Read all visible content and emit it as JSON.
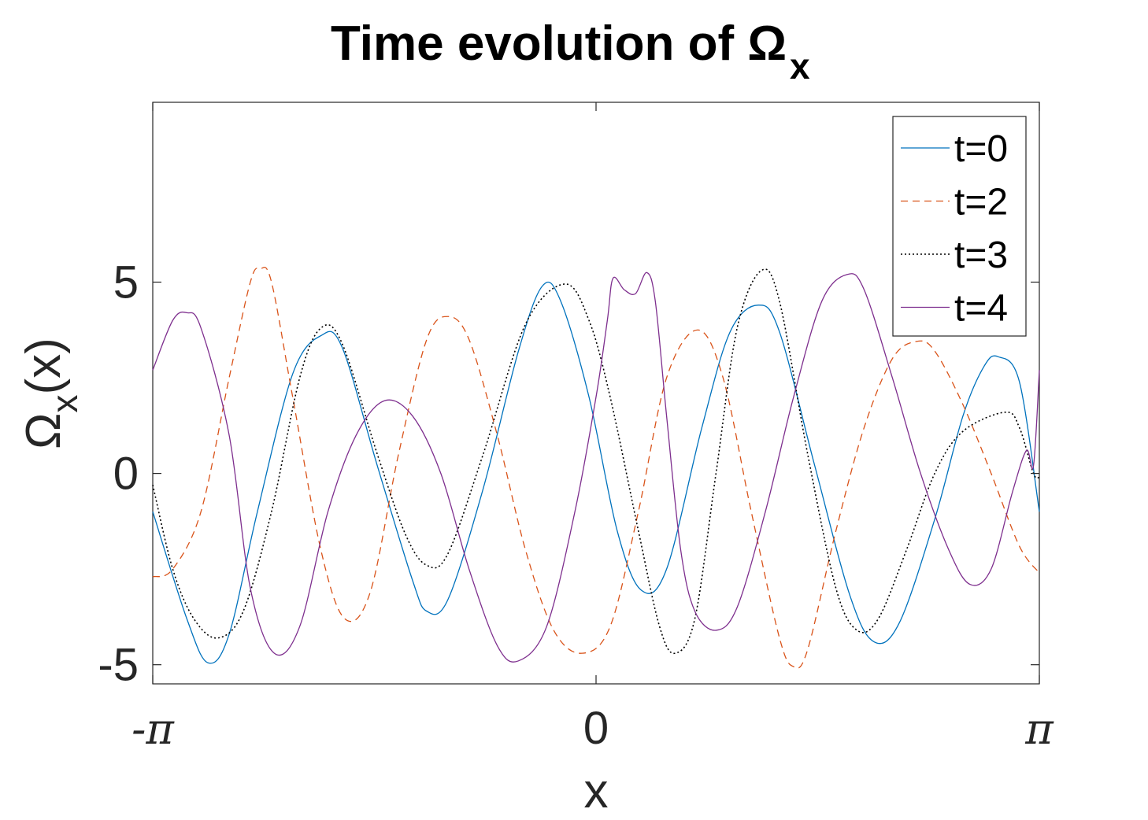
{
  "chart_data": {
    "type": "line",
    "title": "Time evolution of Ω",
    "title_subscript": "x",
    "xlabel": "x",
    "ylabel": "Ω",
    "ylabel_subscript": "x",
    "ylabel_suffix": "(x)",
    "xlim": [
      -3.14159,
      3.14159
    ],
    "ylim": [
      -5.5,
      9.7
    ],
    "x_ticks": [
      {
        "value": -3.14159,
        "label": "-π"
      },
      {
        "value": 0,
        "label": "0"
      },
      {
        "value": 3.14159,
        "label": "π"
      }
    ],
    "y_ticks": [
      {
        "value": 5,
        "label": "5"
      },
      {
        "value": 0,
        "label": "0"
      },
      {
        "value": -5,
        "label": "-5"
      }
    ],
    "grid": false,
    "legend_position": "top-right",
    "series": [
      {
        "name": "t=0",
        "color": "#0072BD",
        "dash": "solid",
        "points": [
          [
            -3.1416,
            -1.0
          ],
          [
            -2.9,
            -3.8
          ],
          [
            -2.75,
            -4.95
          ],
          [
            -2.6,
            -4.2
          ],
          [
            -2.4,
            -1.0
          ],
          [
            -2.15,
            2.6
          ],
          [
            -1.95,
            3.6
          ],
          [
            -1.8,
            3.3
          ],
          [
            -1.55,
            0.2
          ],
          [
            -1.3,
            -2.8
          ],
          [
            -1.2,
            -3.6
          ],
          [
            -1.05,
            -3.3
          ],
          [
            -0.8,
            -0.4
          ],
          [
            -0.55,
            3.2
          ],
          [
            -0.38,
            4.9
          ],
          [
            -0.25,
            4.5
          ],
          [
            -0.05,
            2.0
          ],
          [
            0.15,
            -1.5
          ],
          [
            0.32,
            -3.05
          ],
          [
            0.5,
            -2.5
          ],
          [
            0.75,
            1.2
          ],
          [
            0.95,
            3.7
          ],
          [
            1.15,
            4.4
          ],
          [
            1.3,
            3.7
          ],
          [
            1.55,
            0.2
          ],
          [
            1.8,
            -3.2
          ],
          [
            1.97,
            -4.4
          ],
          [
            2.15,
            -3.9
          ],
          [
            2.4,
            -1.2
          ],
          [
            2.6,
            1.5
          ],
          [
            2.75,
            2.8
          ],
          [
            2.85,
            3.05
          ],
          [
            3.0,
            2.4
          ],
          [
            3.1416,
            -1.0
          ]
        ]
      },
      {
        "name": "t=2",
        "color": "#D95319",
        "dash": "dashed",
        "points": [
          [
            -3.1416,
            -2.7
          ],
          [
            -3.0,
            -2.5
          ],
          [
            -2.8,
            -1.0
          ],
          [
            -2.6,
            2.5
          ],
          [
            -2.45,
            5.0
          ],
          [
            -2.38,
            5.35
          ],
          [
            -2.3,
            5.0
          ],
          [
            -2.15,
            2.0
          ],
          [
            -1.95,
            -2.0
          ],
          [
            -1.78,
            -3.8
          ],
          [
            -1.6,
            -3.1
          ],
          [
            -1.4,
            0.5
          ],
          [
            -1.2,
            3.5
          ],
          [
            -1.05,
            4.1
          ],
          [
            -0.9,
            3.5
          ],
          [
            -0.7,
            1.0
          ],
          [
            -0.5,
            -2.0
          ],
          [
            -0.3,
            -4.1
          ],
          [
            -0.1,
            -4.7
          ],
          [
            0.1,
            -4.0
          ],
          [
            0.3,
            -1.0
          ],
          [
            0.5,
            2.5
          ],
          [
            0.72,
            3.75
          ],
          [
            0.9,
            2.5
          ],
          [
            1.1,
            -1.0
          ],
          [
            1.3,
            -4.3
          ],
          [
            1.4,
            -5.05
          ],
          [
            1.5,
            -4.6
          ],
          [
            1.7,
            -1.5
          ],
          [
            1.9,
            1.2
          ],
          [
            2.1,
            3.0
          ],
          [
            2.27,
            3.45
          ],
          [
            2.4,
            3.2
          ],
          [
            2.6,
            1.8
          ],
          [
            2.8,
            0.0
          ],
          [
            3.0,
            -1.9
          ],
          [
            3.1416,
            -2.6
          ]
        ]
      },
      {
        "name": "t=3",
        "color": "#000000",
        "dash": "dotted",
        "points": [
          [
            -3.1416,
            -0.3
          ],
          [
            -3.0,
            -2.5
          ],
          [
            -2.85,
            -3.8
          ],
          [
            -2.68,
            -4.3
          ],
          [
            -2.5,
            -3.6
          ],
          [
            -2.3,
            -1.0
          ],
          [
            -2.1,
            2.5
          ],
          [
            -1.95,
            3.8
          ],
          [
            -1.8,
            3.4
          ],
          [
            -1.55,
            0.5
          ],
          [
            -1.35,
            -1.6
          ],
          [
            -1.2,
            -2.4
          ],
          [
            -1.05,
            -2.1
          ],
          [
            -0.8,
            0.5
          ],
          [
            -0.5,
            3.9
          ],
          [
            -0.22,
            4.95
          ],
          [
            -0.05,
            4.0
          ],
          [
            0.1,
            2.0
          ],
          [
            0.3,
            -1.5
          ],
          [
            0.45,
            -4.0
          ],
          [
            0.56,
            -4.7
          ],
          [
            0.7,
            -3.8
          ],
          [
            0.85,
            0.0
          ],
          [
            1.0,
            3.8
          ],
          [
            1.17,
            5.3
          ],
          [
            1.3,
            4.5
          ],
          [
            1.5,
            0.5
          ],
          [
            1.7,
            -3.0
          ],
          [
            1.85,
            -4.1
          ],
          [
            2.0,
            -3.8
          ],
          [
            2.2,
            -2.0
          ],
          [
            2.4,
            0.0
          ],
          [
            2.6,
            1.1
          ],
          [
            2.9,
            1.6
          ],
          [
            3.0,
            1.2
          ],
          [
            3.1,
            0.0
          ],
          [
            3.1416,
            -0.1
          ]
        ]
      },
      {
        "name": "t=4",
        "color": "#7E2F8E",
        "dash": "solid",
        "points": [
          [
            -3.1416,
            2.7
          ],
          [
            -3.0,
            4.0
          ],
          [
            -2.9,
            4.2
          ],
          [
            -2.8,
            3.8
          ],
          [
            -2.6,
            1.0
          ],
          [
            -2.45,
            -3.0
          ],
          [
            -2.28,
            -4.7
          ],
          [
            -2.1,
            -4.0
          ],
          [
            -1.9,
            -1.0
          ],
          [
            -1.7,
            1.0
          ],
          [
            -1.5,
            1.9
          ],
          [
            -1.3,
            1.5
          ],
          [
            -1.1,
            0.0
          ],
          [
            -0.9,
            -2.5
          ],
          [
            -0.7,
            -4.5
          ],
          [
            -0.55,
            -4.9
          ],
          [
            -0.35,
            -4.0
          ],
          [
            -0.15,
            -1.0
          ],
          [
            0.0,
            2.0
          ],
          [
            0.08,
            4.0
          ],
          [
            0.12,
            5.1
          ],
          [
            0.2,
            4.8
          ],
          [
            0.28,
            4.7
          ],
          [
            0.36,
            5.25
          ],
          [
            0.42,
            4.5
          ],
          [
            0.5,
            1.5
          ],
          [
            0.6,
            -2.0
          ],
          [
            0.7,
            -3.6
          ],
          [
            0.85,
            -4.1
          ],
          [
            1.0,
            -3.5
          ],
          [
            1.2,
            -1.0
          ],
          [
            1.4,
            2.0
          ],
          [
            1.6,
            4.5
          ],
          [
            1.78,
            5.2
          ],
          [
            1.9,
            4.8
          ],
          [
            2.1,
            2.5
          ],
          [
            2.3,
            0.0
          ],
          [
            2.5,
            -2.0
          ],
          [
            2.65,
            -2.9
          ],
          [
            2.8,
            -2.5
          ],
          [
            2.95,
            -0.5
          ],
          [
            3.05,
            0.6
          ],
          [
            3.1,
            0.2
          ],
          [
            3.1416,
            2.7
          ]
        ]
      }
    ]
  }
}
